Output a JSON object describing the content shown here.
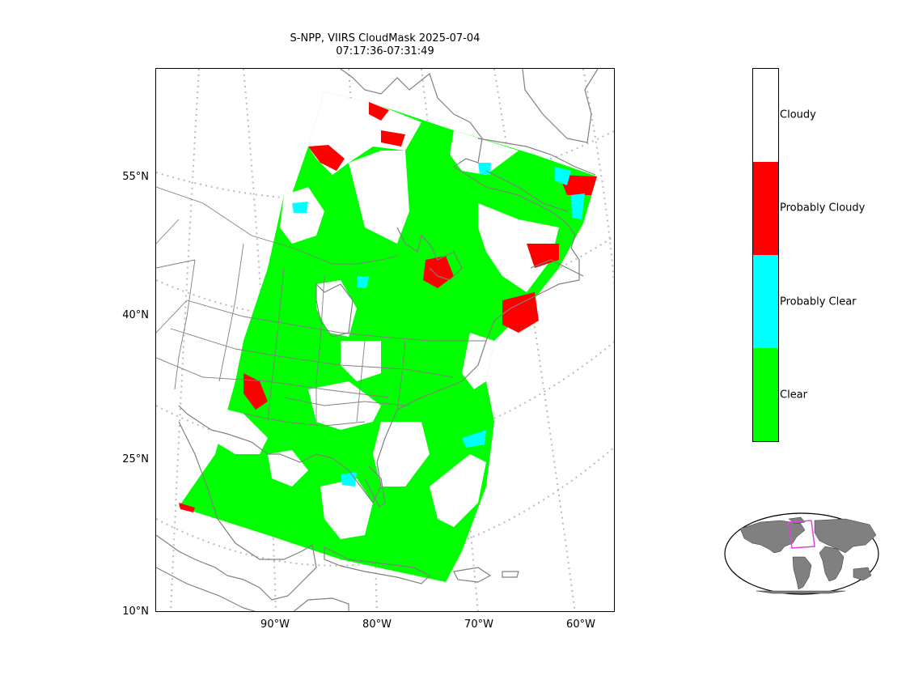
{
  "title": {
    "line1": "S-NPP, VIIRS CloudMask 2025-07-04",
    "line2": "07:17:36-07:31:49"
  },
  "axes": {
    "lat_labels": [
      "55°N",
      "40°N",
      "25°N",
      "10°N"
    ],
    "lon_labels": [
      "90°W",
      "80°W",
      "70°W",
      "60°W"
    ]
  },
  "colorbar": {
    "categories": [
      {
        "label": "Cloudy",
        "color": "#ffffff"
      },
      {
        "label": "Probably Cloudy",
        "color": "#ff0000"
      },
      {
        "label": "Probably Clear",
        "color": "#00ffff"
      },
      {
        "label": "Clear",
        "color": "#00ff00"
      }
    ]
  },
  "colors": {
    "clear": "#00ff00",
    "probably_clear": "#00ffff",
    "probably_cloudy": "#ff0000",
    "cloudy": "#ffffff",
    "coastline": "#808080",
    "gridline": "#bbbbbb",
    "inset_land": "#808080",
    "inset_box": "#dd44dd"
  }
}
